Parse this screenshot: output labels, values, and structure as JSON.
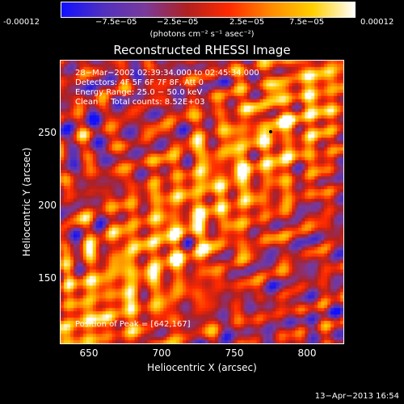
{
  "colorbar": {
    "ticks": [
      "-0.00012",
      "−7.5e−05",
      "−2.5e−05",
      "2.5e−05",
      "7.5e−05",
      "0.00012"
    ],
    "unit": "(photons cm⁻² s⁻¹ asec⁻²)",
    "stops": [
      "#1010ff",
      "#5030c0",
      "#7a3a9a",
      "#b02020",
      "#ff2a00",
      "#ff8a00",
      "#ffd000",
      "#ffffff"
    ]
  },
  "title": "Reconstructed RHESSI Image",
  "info": {
    "line1": "28−Mar−2002 02:39:34.000 to 02:45:34.000",
    "line2": "Detectors: 4F 5F 6F 7F 8F, Att 0",
    "line3": "Energy Range: 25.0 − 50.0 keV",
    "line4": "Clean     Total counts: 8.52E+03"
  },
  "peak_text": "Position of Peak = [642,167]",
  "axes": {
    "xlabel": "Heliocentric X (arcsec)",
    "ylabel": "Heliocentric Y (arcsec)",
    "xrange": [
      630,
      826
    ],
    "yrange": [
      100,
      296
    ],
    "xticks": [
      "650",
      "700",
      "750",
      "800"
    ],
    "yticks": [
      "150",
      "200",
      "250"
    ],
    "xtick_values": [
      650,
      700,
      750,
      800
    ],
    "ytick_values": [
      150,
      200,
      250
    ]
  },
  "timestamp": "13−Apr−2013 16:54"
}
